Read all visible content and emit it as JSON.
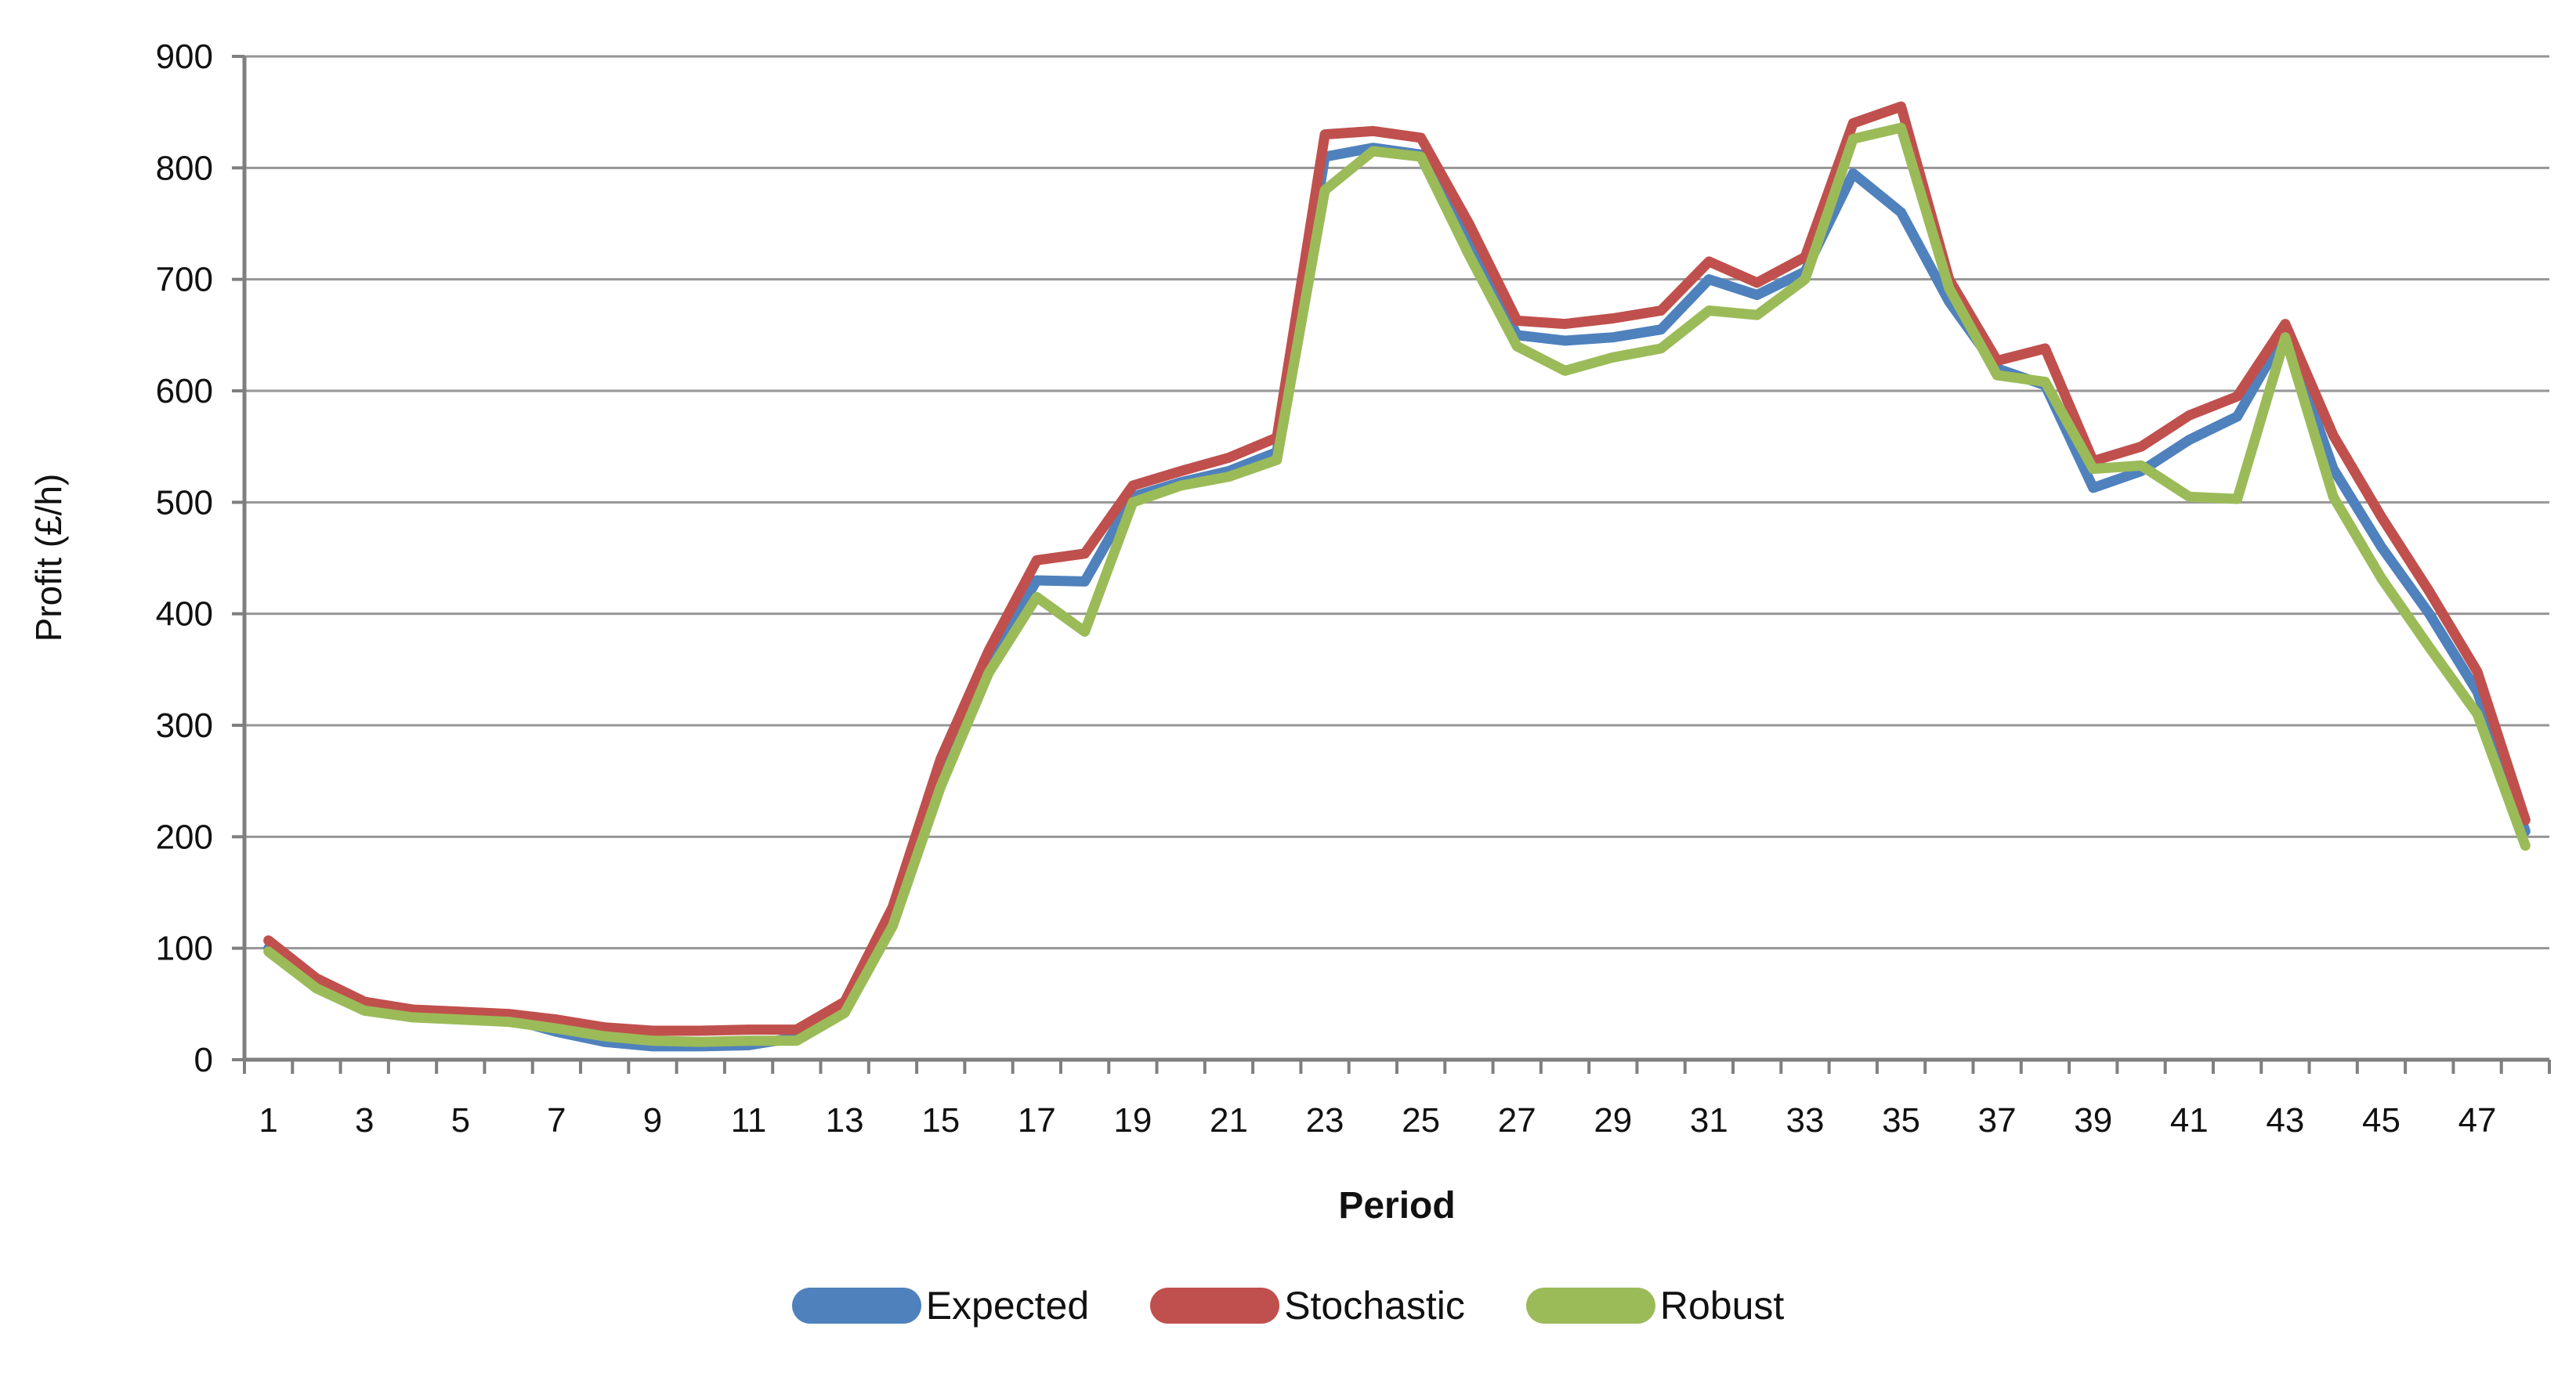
{
  "chart_data": {
    "type": "line",
    "title": "",
    "xlabel": "Period",
    "ylabel": "Profit (£/h)",
    "x": [
      1,
      2,
      3,
      4,
      5,
      6,
      7,
      8,
      9,
      10,
      11,
      12,
      13,
      14,
      15,
      16,
      17,
      18,
      19,
      20,
      21,
      22,
      23,
      24,
      25,
      26,
      27,
      28,
      29,
      30,
      31,
      32,
      33,
      34,
      35,
      36,
      37,
      38,
      39,
      40,
      41,
      42,
      43,
      44,
      45,
      46,
      47,
      48
    ],
    "x_tick_labels": [
      "1",
      "3",
      "5",
      "7",
      "9",
      "11",
      "13",
      "15",
      "17",
      "19",
      "21",
      "23",
      "25",
      "27",
      "29",
      "31",
      "33",
      "35",
      "37",
      "39",
      "41",
      "43",
      "45",
      "47"
    ],
    "ylim": [
      0,
      900
    ],
    "y_ticks": [
      0,
      100,
      200,
      300,
      400,
      500,
      600,
      700,
      800,
      900
    ],
    "grid": "horizontal",
    "legend_position": "bottom",
    "axis_color": "#7f7f7f",
    "gridline_color": "#969696",
    "series": [
      {
        "name": "Expected",
        "color": "#4F81BD",
        "values": [
          100,
          67,
          47,
          41,
          39,
          37,
          25,
          16,
          12,
          12,
          13,
          20,
          45,
          128,
          255,
          357,
          430,
          429,
          505,
          518,
          528,
          545,
          810,
          818,
          812,
          735,
          650,
          645,
          648,
          655,
          700,
          686,
          707,
          795,
          760,
          680,
          620,
          605,
          513,
          528,
          556,
          577,
          652,
          530,
          460,
          400,
          330,
          205
        ]
      },
      {
        "name": "Stochastic",
        "color": "#C0504D",
        "values": [
          107,
          73,
          52,
          45,
          43,
          41,
          36,
          29,
          26,
          26,
          27,
          27,
          52,
          137,
          270,
          367,
          448,
          454,
          515,
          528,
          540,
          558,
          830,
          833,
          827,
          750,
          663,
          660,
          665,
          672,
          716,
          697,
          720,
          840,
          855,
          700,
          627,
          638,
          537,
          550,
          578,
          595,
          660,
          560,
          487,
          420,
          348,
          215
        ]
      },
      {
        "name": "Robust",
        "color": "#9BBB59",
        "values": [
          97,
          64,
          44,
          38,
          36,
          34,
          28,
          21,
          17,
          16,
          17,
          17,
          42,
          120,
          245,
          347,
          415,
          384,
          500,
          515,
          523,
          538,
          780,
          815,
          810,
          722,
          640,
          618,
          630,
          638,
          672,
          668,
          700,
          826,
          836,
          692,
          614,
          608,
          530,
          533,
          505,
          503,
          648,
          505,
          432,
          370,
          310,
          192
        ]
      }
    ]
  }
}
